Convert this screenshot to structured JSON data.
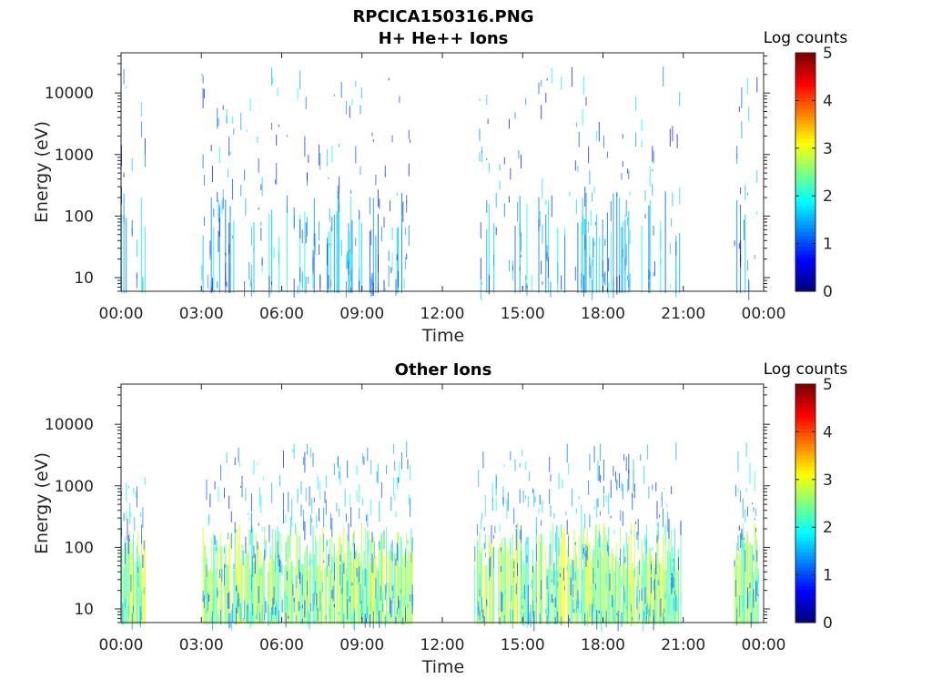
{
  "figure_title": "RPCICA150316.PNG",
  "chart_data": [
    {
      "type": "heatmap",
      "title": "H+ He++ Ions",
      "xlabel": "Time",
      "ylabel": "Energy (eV)",
      "x_tick_labels": [
        "00:00",
        "03:00",
        "06:00",
        "09:00",
        "12:00",
        "15:00",
        "18:00",
        "21:00",
        "00:00"
      ],
      "x_range_hours": [
        0,
        24
      ],
      "y_scale": "log",
      "y_range": [
        6,
        45000
      ],
      "y_tick_values": [
        10,
        100,
        1000,
        10000
      ],
      "y_tick_labels": [
        "10",
        "100",
        "1000",
        "10000"
      ],
      "colorbar": {
        "label": "Log counts",
        "range": [
          0,
          5
        ],
        "tick_labels": [
          "0",
          "1",
          "2",
          "3",
          "4",
          "5"
        ],
        "colormap": "jet"
      },
      "data_intervals_hours": [
        [
          0.0,
          0.9
        ],
        [
          3.0,
          10.9
        ],
        [
          13.2,
          20.9
        ],
        [
          22.9,
          23.8
        ]
      ],
      "density": 0.25,
      "sparse_energy_log10": [
        0.8,
        4.3
      ],
      "band_energy_log10": [
        1.0,
        1.6
      ],
      "band_log_counts": 1.6,
      "typical_log_counts": 1.2
    },
    {
      "type": "heatmap",
      "title": "Other Ions",
      "xlabel": "Time",
      "ylabel": "Energy (eV)",
      "x_tick_labels": [
        "00:00",
        "03:00",
        "06:00",
        "09:00",
        "12:00",
        "15:00",
        "18:00",
        "21:00",
        "00:00"
      ],
      "x_range_hours": [
        0,
        24
      ],
      "y_scale": "log",
      "y_range": [
        6,
        45000
      ],
      "y_tick_values": [
        10,
        100,
        1000,
        10000
      ],
      "y_tick_labels": [
        "10",
        "100",
        "1000",
        "10000"
      ],
      "colorbar": {
        "label": "Log counts",
        "range": [
          0,
          5
        ],
        "tick_labels": [
          "0",
          "1",
          "2",
          "3",
          "4",
          "5"
        ],
        "colormap": "jet"
      },
      "data_intervals_hours": [
        [
          0.0,
          0.9
        ],
        [
          3.0,
          10.9
        ],
        [
          13.2,
          20.9
        ],
        [
          22.9,
          23.8
        ]
      ],
      "density": 0.7,
      "sparse_energy_log10": [
        0.8,
        3.6
      ],
      "band_energy_log10": [
        1.0,
        1.6
      ],
      "band_log_counts": 2.6,
      "typical_log_counts": 1.4
    }
  ]
}
